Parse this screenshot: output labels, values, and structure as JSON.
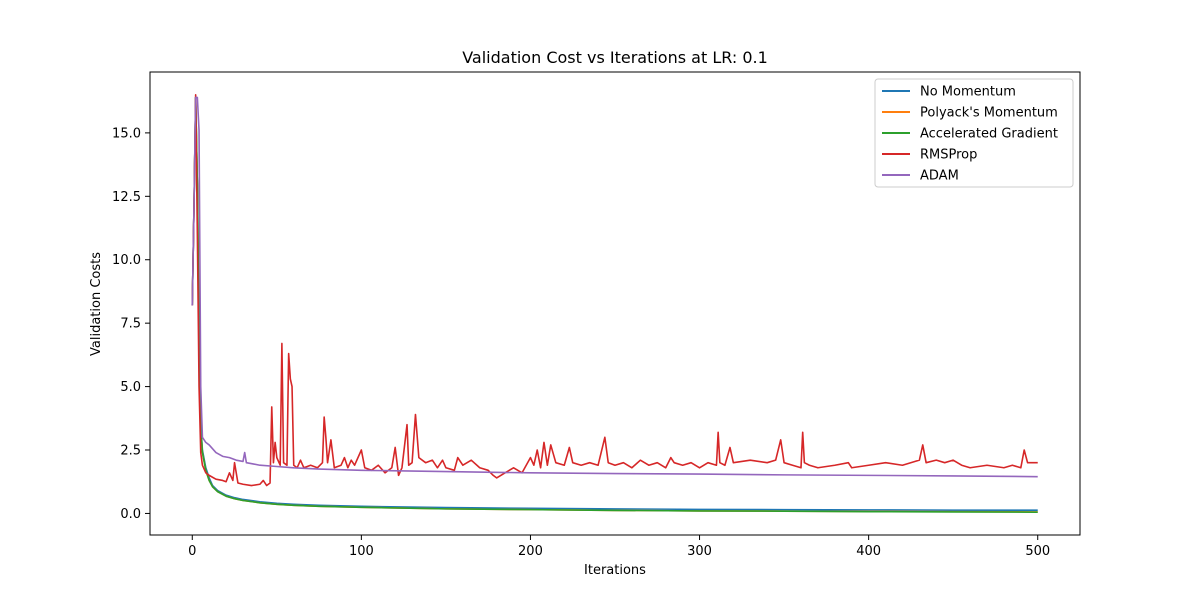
{
  "chart_data": {
    "type": "line",
    "title": "Validation Cost vs Iterations at LR: 0.1",
    "xlabel": "Iterations",
    "ylabel": "Validation Costs",
    "xlim": [
      -25,
      525
    ],
    "ylim": [
      -0.85,
      17.4
    ],
    "xticks": [
      0,
      100,
      200,
      300,
      400,
      500
    ],
    "yticks": [
      0.0,
      2.5,
      5.0,
      7.5,
      10.0,
      12.5,
      15.0
    ],
    "xtick_labels": [
      "0",
      "100",
      "200",
      "300",
      "400",
      "500"
    ],
    "ytick_labels": [
      "0.0",
      "2.5",
      "5.0",
      "7.5",
      "10.0",
      "12.5",
      "15.0"
    ],
    "grid": false,
    "legend_position": "top-right",
    "series": [
      {
        "name": "No Momentum",
        "color": "#1f77b4",
        "points": [
          [
            0,
            8.2
          ],
          [
            1,
            12.0
          ],
          [
            2,
            16.4
          ],
          [
            3,
            13.0
          ],
          [
            4,
            7.0
          ],
          [
            5,
            3.5
          ],
          [
            6,
            2.5
          ],
          [
            8,
            1.8
          ],
          [
            10,
            1.4
          ],
          [
            12,
            1.1
          ],
          [
            15,
            0.9
          ],
          [
            20,
            0.72
          ],
          [
            25,
            0.62
          ],
          [
            30,
            0.55
          ],
          [
            40,
            0.46
          ],
          [
            50,
            0.4
          ],
          [
            60,
            0.36
          ],
          [
            75,
            0.32
          ],
          [
            100,
            0.28
          ],
          [
            150,
            0.23
          ],
          [
            200,
            0.2
          ],
          [
            250,
            0.18
          ],
          [
            300,
            0.16
          ],
          [
            350,
            0.15
          ],
          [
            400,
            0.14
          ],
          [
            450,
            0.13
          ],
          [
            500,
            0.13
          ]
        ]
      },
      {
        "name": "Polyack's Momentum",
        "color": "#ff7f0e",
        "points": [
          [
            0,
            8.2
          ],
          [
            1,
            12.0
          ],
          [
            2,
            16.4
          ],
          [
            3,
            13.0
          ],
          [
            4,
            7.0
          ],
          [
            5,
            3.4
          ],
          [
            6,
            2.4
          ],
          [
            8,
            1.7
          ],
          [
            10,
            1.3
          ],
          [
            12,
            1.05
          ],
          [
            15,
            0.86
          ],
          [
            20,
            0.68
          ],
          [
            25,
            0.58
          ],
          [
            30,
            0.51
          ],
          [
            40,
            0.42
          ],
          [
            50,
            0.36
          ],
          [
            60,
            0.32
          ],
          [
            75,
            0.28
          ],
          [
            100,
            0.24
          ],
          [
            150,
            0.18
          ],
          [
            200,
            0.15
          ],
          [
            250,
            0.12
          ],
          [
            300,
            0.1
          ],
          [
            350,
            0.09
          ],
          [
            400,
            0.08
          ],
          [
            450,
            0.07
          ],
          [
            500,
            0.06
          ]
        ]
      },
      {
        "name": "Accelerated Gradient",
        "color": "#2ca02c",
        "points": [
          [
            0,
            8.2
          ],
          [
            1,
            12.0
          ],
          [
            2,
            16.4
          ],
          [
            3,
            13.0
          ],
          [
            4,
            7.0
          ],
          [
            5,
            3.4
          ],
          [
            6,
            2.4
          ],
          [
            8,
            1.7
          ],
          [
            10,
            1.3
          ],
          [
            12,
            1.05
          ],
          [
            15,
            0.86
          ],
          [
            20,
            0.68
          ],
          [
            25,
            0.58
          ],
          [
            30,
            0.51
          ],
          [
            40,
            0.42
          ],
          [
            50,
            0.36
          ],
          [
            60,
            0.32
          ],
          [
            75,
            0.28
          ],
          [
            100,
            0.24
          ],
          [
            150,
            0.18
          ],
          [
            200,
            0.15
          ],
          [
            250,
            0.12
          ],
          [
            300,
            0.1
          ],
          [
            350,
            0.09
          ],
          [
            400,
            0.07
          ],
          [
            450,
            0.06
          ],
          [
            500,
            0.05
          ]
        ]
      },
      {
        "name": "RMSProp",
        "color": "#d62728",
        "points": [
          [
            0,
            8.2
          ],
          [
            1,
            12.0
          ],
          [
            2,
            16.5
          ],
          [
            3,
            11.0
          ],
          [
            4,
            5.0
          ],
          [
            5,
            2.4
          ],
          [
            6,
            1.9
          ],
          [
            8,
            1.6
          ],
          [
            10,
            1.5
          ],
          [
            14,
            1.35
          ],
          [
            18,
            1.3
          ],
          [
            20,
            1.25
          ],
          [
            22,
            1.6
          ],
          [
            24,
            1.3
          ],
          [
            25,
            2.0
          ],
          [
            27,
            1.2
          ],
          [
            30,
            1.15
          ],
          [
            35,
            1.1
          ],
          [
            40,
            1.15
          ],
          [
            42,
            1.3
          ],
          [
            44,
            1.1
          ],
          [
            46,
            1.2
          ],
          [
            47,
            4.2
          ],
          [
            48,
            2.0
          ],
          [
            49,
            2.8
          ],
          [
            50,
            2.2
          ],
          [
            52,
            1.9
          ],
          [
            53,
            6.7
          ],
          [
            54,
            2.0
          ],
          [
            56,
            1.9
          ],
          [
            57,
            6.3
          ],
          [
            58,
            5.3
          ],
          [
            59,
            5.0
          ],
          [
            60,
            1.9
          ],
          [
            62,
            1.8
          ],
          [
            64,
            2.1
          ],
          [
            66,
            1.8
          ],
          [
            70,
            1.9
          ],
          [
            74,
            1.8
          ],
          [
            77,
            2.0
          ],
          [
            78,
            3.8
          ],
          [
            79,
            3.0
          ],
          [
            80,
            2.0
          ],
          [
            82,
            2.9
          ],
          [
            84,
            1.8
          ],
          [
            88,
            1.9
          ],
          [
            90,
            2.2
          ],
          [
            92,
            1.8
          ],
          [
            94,
            2.1
          ],
          [
            96,
            1.9
          ],
          [
            100,
            2.5
          ],
          [
            102,
            1.8
          ],
          [
            106,
            1.7
          ],
          [
            110,
            1.9
          ],
          [
            114,
            1.6
          ],
          [
            118,
            1.8
          ],
          [
            120,
            2.6
          ],
          [
            122,
            1.5
          ],
          [
            124,
            1.8
          ],
          [
            127,
            3.5
          ],
          [
            128,
            1.9
          ],
          [
            130,
            2.0
          ],
          [
            132,
            3.9
          ],
          [
            134,
            2.2
          ],
          [
            138,
            2.0
          ],
          [
            142,
            2.1
          ],
          [
            145,
            1.8
          ],
          [
            148,
            2.1
          ],
          [
            150,
            1.8
          ],
          [
            155,
            1.7
          ],
          [
            157,
            2.2
          ],
          [
            160,
            1.9
          ],
          [
            165,
            2.1
          ],
          [
            170,
            1.8
          ],
          [
            175,
            1.7
          ],
          [
            178,
            1.5
          ],
          [
            180,
            1.4
          ],
          [
            185,
            1.6
          ],
          [
            190,
            1.8
          ],
          [
            195,
            1.6
          ],
          [
            200,
            2.2
          ],
          [
            202,
            1.9
          ],
          [
            204,
            2.5
          ],
          [
            206,
            1.8
          ],
          [
            208,
            2.8
          ],
          [
            210,
            1.9
          ],
          [
            212,
            2.7
          ],
          [
            215,
            2.0
          ],
          [
            220,
            1.9
          ],
          [
            223,
            2.6
          ],
          [
            225,
            2.0
          ],
          [
            230,
            1.9
          ],
          [
            235,
            2.0
          ],
          [
            240,
            1.9
          ],
          [
            244,
            3.0
          ],
          [
            246,
            2.0
          ],
          [
            250,
            1.9
          ],
          [
            255,
            2.0
          ],
          [
            260,
            1.8
          ],
          [
            265,
            2.1
          ],
          [
            270,
            1.9
          ],
          [
            275,
            2.0
          ],
          [
            280,
            1.8
          ],
          [
            283,
            2.2
          ],
          [
            285,
            2.0
          ],
          [
            290,
            1.9
          ],
          [
            295,
            2.0
          ],
          [
            300,
            1.8
          ],
          [
            305,
            2.0
          ],
          [
            310,
            1.9
          ],
          [
            311,
            3.2
          ],
          [
            312,
            2.0
          ],
          [
            315,
            1.9
          ],
          [
            318,
            2.6
          ],
          [
            320,
            2.0
          ],
          [
            330,
            2.1
          ],
          [
            340,
            2.0
          ],
          [
            345,
            2.1
          ],
          [
            348,
            2.9
          ],
          [
            350,
            2.0
          ],
          [
            355,
            1.9
          ],
          [
            360,
            1.8
          ],
          [
            361,
            3.2
          ],
          [
            362,
            2.0
          ],
          [
            365,
            1.9
          ],
          [
            370,
            1.8
          ],
          [
            380,
            1.9
          ],
          [
            388,
            2.0
          ],
          [
            390,
            1.8
          ],
          [
            400,
            1.9
          ],
          [
            410,
            2.0
          ],
          [
            420,
            1.9
          ],
          [
            430,
            2.1
          ],
          [
            432,
            2.7
          ],
          [
            434,
            2.0
          ],
          [
            440,
            2.1
          ],
          [
            445,
            2.0
          ],
          [
            450,
            2.1
          ],
          [
            455,
            1.9
          ],
          [
            460,
            1.8
          ],
          [
            470,
            1.9
          ],
          [
            480,
            1.8
          ],
          [
            485,
            1.9
          ],
          [
            490,
            1.8
          ],
          [
            492,
            2.5
          ],
          [
            494,
            2.0
          ],
          [
            500,
            2.0
          ]
        ]
      },
      {
        "name": "ADAM",
        "color": "#9467bd",
        "points": [
          [
            0,
            8.2
          ],
          [
            1,
            12.0
          ],
          [
            2,
            16.4
          ],
          [
            3,
            16.4
          ],
          [
            4,
            15.1
          ],
          [
            5,
            5.0
          ],
          [
            6,
            3.0
          ],
          [
            8,
            2.8
          ],
          [
            10,
            2.7
          ],
          [
            14,
            2.4
          ],
          [
            18,
            2.25
          ],
          [
            22,
            2.2
          ],
          [
            26,
            2.1
          ],
          [
            30,
            2.05
          ],
          [
            31,
            2.4
          ],
          [
            32,
            2.0
          ],
          [
            36,
            1.95
          ],
          [
            40,
            1.9
          ],
          [
            50,
            1.85
          ],
          [
            60,
            1.8
          ],
          [
            75,
            1.75
          ],
          [
            100,
            1.7
          ],
          [
            150,
            1.65
          ],
          [
            200,
            1.6
          ],
          [
            250,
            1.57
          ],
          [
            300,
            1.55
          ],
          [
            350,
            1.52
          ],
          [
            400,
            1.5
          ],
          [
            450,
            1.48
          ],
          [
            500,
            1.45
          ]
        ]
      }
    ]
  }
}
